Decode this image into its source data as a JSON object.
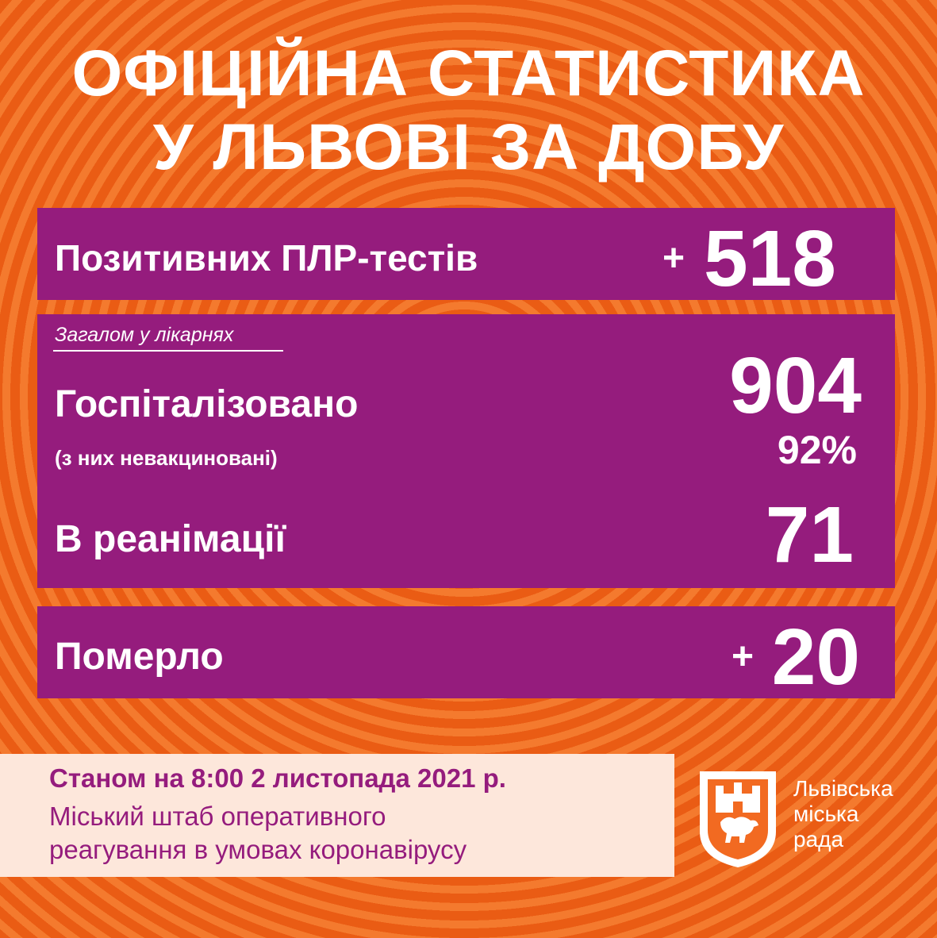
{
  "title": {
    "line1": "ОФІЦІЙНА СТАТИСТИКА",
    "line2": "У ЛЬВОВІ ЗА ДОБУ"
  },
  "pcr": {
    "label": "Позитивних ПЛР-тестів",
    "plus": "+",
    "value": "518"
  },
  "hospital": {
    "total_label": "Загалом у лікарнях",
    "hospitalized_label": "Госпіталізовано",
    "hospitalized_value": "904",
    "unvaccinated_label": "(з них невакциновані)",
    "unvaccinated_value": "92%",
    "icu_label": "В реанімації",
    "icu_value": "71"
  },
  "deaths": {
    "label": "Померло",
    "plus": "+",
    "value": "20"
  },
  "footer": {
    "date": "Станом на 8:00 2 листопада 2021 р.",
    "line1": "Міський штаб оперативного",
    "line2": "реагування в умовах коронавірусу"
  },
  "organization": {
    "line1": "Львівська",
    "line2": "міська",
    "line3": "рада",
    "logo_icon": "lviv-coat-of-arms-icon"
  },
  "colors": {
    "background": "#f26a21",
    "panel": "#951c7d",
    "footer": "#fde7db",
    "text": "#ffffff"
  }
}
